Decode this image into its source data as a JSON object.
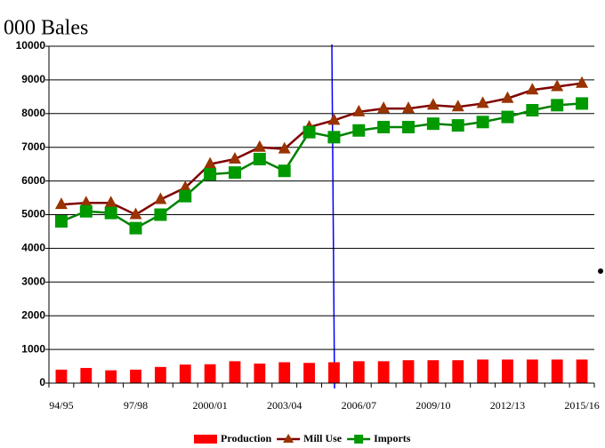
{
  "chart_data": {
    "type": "combo",
    "title": "000 Bales",
    "categories": [
      "94/95",
      null,
      null,
      "97/98",
      null,
      null,
      "2000/01",
      null,
      null,
      "2003/04",
      null,
      null,
      "2006/07",
      null,
      null,
      "2009/10",
      null,
      null,
      "2012/13",
      null,
      null,
      "2015/16"
    ],
    "series": [
      {
        "name": "Production",
        "type": "bar",
        "color": "#ff0000",
        "values": [
          400,
          450,
          380,
          400,
          480,
          550,
          560,
          650,
          580,
          620,
          600,
          620,
          650,
          650,
          680,
          680,
          680,
          700,
          700,
          700,
          700,
          700
        ]
      },
      {
        "name": "Mill Use",
        "type": "line",
        "marker": "triangle",
        "color": "#800000",
        "marker_color": "#993300",
        "values": [
          5300,
          5350,
          5350,
          5000,
          5450,
          5800,
          6500,
          6650,
          7000,
          6950,
          7600,
          7800,
          8050,
          8150,
          8150,
          8250,
          8200,
          8300,
          8450,
          8700,
          8800,
          8900
        ]
      },
      {
        "name": "Imports",
        "type": "line",
        "marker": "square",
        "color": "#008000",
        "marker_color": "#009900",
        "values": [
          4800,
          5100,
          5050,
          4600,
          5000,
          5550,
          6200,
          6250,
          6650,
          6300,
          7450,
          7300,
          7500,
          7600,
          7600,
          7700,
          7650,
          7750,
          7900,
          8100,
          8250,
          8300
        ]
      }
    ],
    "ylim": [
      0,
      10000
    ],
    "yticks": [
      0,
      1000,
      2000,
      3000,
      4000,
      5000,
      6000,
      7000,
      8000,
      9000,
      10000
    ],
    "grid": true,
    "legend": "bottom"
  }
}
